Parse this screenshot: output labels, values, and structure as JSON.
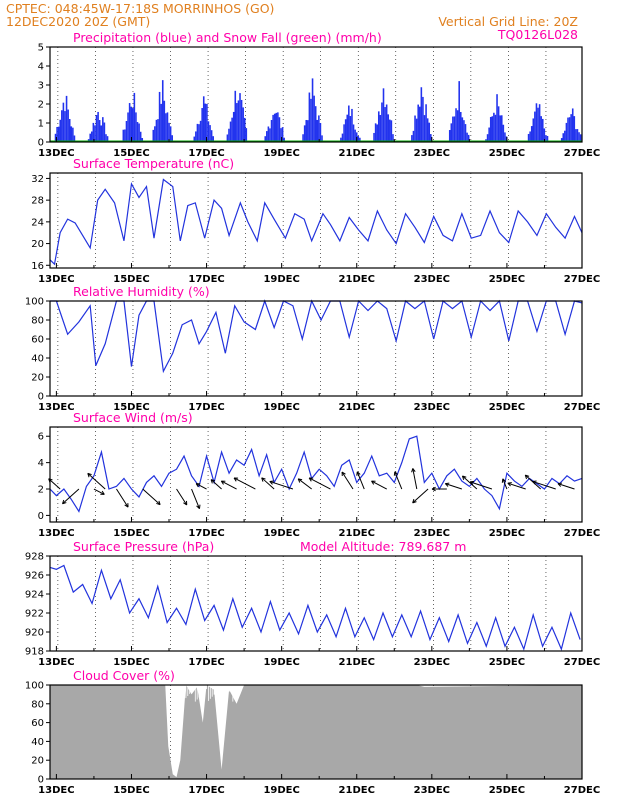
{
  "header": {
    "line1": "CPTEC:   048:45W-17:18S   MORRINHOS (GO)",
    "line2": "12DEC2020 20Z (GMT)",
    "grid_note": "Vertical Grid Line: 20Z",
    "run_code": "TQ0126L028"
  },
  "colors": {
    "header": "#e08020",
    "title": "#ff00aa",
    "line": "#2233dd",
    "precip": "#2233ee",
    "snow": "#00aa00",
    "cloud": "#a8a8a8",
    "wind_barb": "#000000"
  },
  "x_tick_labels": [
    "13DEC",
    "15DEC",
    "17DEC",
    "19DEC",
    "21DEC",
    "23DEC",
    "25DEC",
    "27DEC"
  ],
  "chart_data": [
    {
      "type": "bar",
      "title": "Precipitation (blue) and Snow Fall (green) (mm/h)",
      "ylim": [
        0,
        5
      ],
      "yticks": [
        "0",
        "1",
        "2",
        "3",
        "4",
        "5"
      ],
      "x_range_days": [
        12.83,
        27.0
      ],
      "series": [
        {
          "values_peaks": [
            [
              13.2,
              3.1
            ],
            [
              14.1,
              2.2
            ],
            [
              15.0,
              3.2
            ],
            [
              15.8,
              3.6
            ],
            [
              16.9,
              2.9
            ],
            [
              17.8,
              3.8
            ],
            [
              18.8,
              2.5
            ],
            [
              19.8,
              3.6
            ],
            [
              20.8,
              2.3
            ],
            [
              21.7,
              3.9
            ],
            [
              22.7,
              3.9
            ],
            [
              23.7,
              3.5
            ],
            [
              24.7,
              2.8
            ],
            [
              25.8,
              2.4
            ],
            [
              26.7,
              2.1
            ]
          ]
        }
      ]
    },
    {
      "type": "line",
      "title": "Surface Temperature (nC)",
      "ylim": [
        15.5,
        33
      ],
      "yticks": [
        "16",
        "20",
        "24",
        "28",
        "32"
      ],
      "x": [
        12.83,
        12.95,
        13.1,
        13.3,
        13.5,
        13.7,
        13.9,
        14.1,
        14.3,
        14.55,
        14.8,
        15.0,
        15.2,
        15.4,
        15.6,
        15.85,
        16.1,
        16.3,
        16.5,
        16.7,
        16.95,
        17.2,
        17.4,
        17.6,
        17.9,
        18.1,
        18.35,
        18.55,
        18.8,
        19.1,
        19.35,
        19.6,
        19.8,
        20.1,
        20.3,
        20.55,
        20.8,
        21.05,
        21.3,
        21.55,
        21.8,
        22.05,
        22.3,
        22.55,
        22.8,
        23.05,
        23.3,
        23.55,
        23.8,
        24.05,
        24.3,
        24.55,
        24.8,
        25.05,
        25.3,
        25.55,
        25.8,
        26.05,
        26.3,
        26.55,
        26.8,
        27.0
      ],
      "y": [
        17,
        16.2,
        22,
        24.5,
        23.8,
        21.5,
        19.2,
        28,
        30,
        27.5,
        20.5,
        31,
        28.5,
        30.5,
        21,
        31.8,
        30.5,
        20.5,
        27,
        27.5,
        21,
        28,
        26.5,
        21.5,
        27.5,
        24,
        20.5,
        27.5,
        24.5,
        21,
        25.5,
        24.5,
        20.5,
        25.5,
        23.5,
        20.5,
        24.8,
        22.5,
        20.5,
        26,
        22.5,
        20,
        25.5,
        23,
        20.2,
        25,
        21.5,
        20.5,
        25.5,
        21,
        21.5,
        26,
        22,
        20.2,
        26,
        24,
        21.5,
        25.5,
        23,
        21,
        25,
        22
      ]
    },
    {
      "type": "line",
      "title": "Relative Humidity (%)",
      "ylim": [
        0,
        100
      ],
      "yticks": [
        "0",
        "20",
        "40",
        "60",
        "80",
        "100"
      ],
      "x": [
        12.83,
        13.0,
        13.3,
        13.6,
        13.9,
        14.05,
        14.3,
        14.6,
        14.8,
        15.0,
        15.2,
        15.4,
        15.6,
        15.85,
        16.1,
        16.35,
        16.6,
        16.8,
        17.0,
        17.25,
        17.5,
        17.75,
        18.0,
        18.3,
        18.55,
        18.8,
        19.05,
        19.3,
        19.55,
        19.8,
        20.05,
        20.3,
        20.55,
        20.8,
        21.05,
        21.3,
        21.55,
        21.8,
        22.05,
        22.3,
        22.55,
        22.8,
        23.05,
        23.3,
        23.55,
        23.8,
        24.05,
        24.3,
        24.55,
        24.8,
        25.05,
        25.3,
        25.55,
        25.8,
        26.05,
        26.3,
        26.55,
        26.8,
        27.0
      ],
      "y": [
        100,
        100,
        65,
        78,
        95,
        32,
        55,
        100,
        100,
        31,
        85,
        100,
        100,
        26,
        45,
        75,
        80,
        55,
        68,
        88,
        45,
        95,
        78,
        70,
        100,
        72,
        100,
        95,
        60,
        100,
        80,
        100,
        100,
        62,
        100,
        90,
        100,
        92,
        58,
        100,
        92,
        100,
        60,
        100,
        92,
        100,
        62,
        100,
        90,
        100,
        58,
        100,
        100,
        68,
        100,
        100,
        65,
        100,
        98
      ]
    },
    {
      "type": "line",
      "title": "Surface Wind (m/s)",
      "ylim": [
        -0.5,
        6.7
      ],
      "yticks": [
        "0",
        "2",
        "4",
        "6"
      ],
      "x": [
        12.83,
        13.0,
        13.2,
        13.4,
        13.6,
        13.8,
        14.0,
        14.2,
        14.4,
        14.6,
        14.8,
        15.0,
        15.2,
        15.4,
        15.6,
        15.8,
        16.0,
        16.2,
        16.4,
        16.6,
        16.8,
        17.0,
        17.2,
        17.4,
        17.6,
        17.8,
        18.0,
        18.2,
        18.4,
        18.6,
        18.8,
        19.0,
        19.2,
        19.4,
        19.6,
        19.8,
        20.0,
        20.2,
        20.4,
        20.6,
        20.8,
        21.0,
        21.2,
        21.4,
        21.6,
        21.8,
        22.0,
        22.2,
        22.4,
        22.6,
        22.8,
        23.0,
        23.2,
        23.4,
        23.6,
        23.8,
        24.0,
        24.2,
        24.4,
        24.6,
        24.8,
        25.0,
        25.2,
        25.4,
        25.6,
        25.8,
        26.0,
        26.2,
        26.4,
        26.6,
        26.8,
        27.0
      ],
      "y": [
        2.0,
        1.5,
        2.0,
        1.2,
        0.3,
        2.2,
        3.0,
        4.8,
        2.0,
        2.2,
        2.8,
        2.0,
        1.4,
        2.5,
        3.0,
        2.2,
        3.2,
        3.5,
        4.5,
        3.0,
        2.2,
        4.5,
        2.5,
        4.8,
        3.2,
        4.2,
        3.8,
        5.0,
        3.0,
        4.6,
        2.5,
        3.5,
        2.0,
        3.2,
        4.8,
        2.8,
        3.5,
        3.0,
        2.2,
        3.8,
        4.2,
        2.5,
        3.2,
        4.5,
        3.0,
        3.2,
        2.5,
        4.0,
        5.8,
        6.0,
        2.5,
        3.2,
        2.0,
        3.0,
        3.5,
        2.6,
        2.2,
        2.8,
        2.0,
        1.5,
        0.5,
        3.2,
        2.6,
        2.2,
        2.8,
        2.4,
        2.0,
        2.8,
        2.4,
        3.0,
        2.6,
        2.8
      ],
      "arrows_dir_deg": [
        [
          13.1,
          225
        ],
        [
          13.6,
          135
        ],
        [
          14.0,
          30
        ],
        [
          14.3,
          225
        ],
        [
          14.6,
          60
        ],
        [
          15.3,
          45
        ],
        [
          16.2,
          60
        ],
        [
          16.6,
          70
        ],
        [
          17.0,
          210
        ],
        [
          17.4,
          225
        ],
        [
          17.8,
          210
        ],
        [
          18.3,
          210
        ],
        [
          18.8,
          225
        ],
        [
          19.3,
          200
        ],
        [
          19.8,
          220
        ],
        [
          20.3,
          210
        ],
        [
          20.9,
          240
        ],
        [
          21.2,
          250
        ],
        [
          21.8,
          210
        ],
        [
          22.2,
          250
        ],
        [
          22.6,
          260
        ],
        [
          22.9,
          135
        ],
        [
          23.4,
          180
        ],
        [
          23.8,
          200
        ],
        [
          24.2,
          225
        ],
        [
          24.6,
          200
        ],
        [
          25.0,
          250
        ],
        [
          25.5,
          200
        ],
        [
          25.9,
          225
        ],
        [
          26.3,
          200
        ],
        [
          26.8,
          200
        ]
      ]
    },
    {
      "type": "line",
      "title": "Surface Pressure (hPa)",
      "annotation": "Model Altitude:  789.687 m",
      "ylim": [
        918,
        928
      ],
      "yticks": [
        "918",
        "920",
        "922",
        "924",
        "926",
        "928"
      ],
      "x": [
        12.83,
        13.0,
        13.2,
        13.45,
        13.7,
        13.95,
        14.2,
        14.45,
        14.7,
        14.95,
        15.2,
        15.45,
        15.7,
        15.95,
        16.2,
        16.45,
        16.7,
        16.95,
        17.2,
        17.45,
        17.7,
        17.95,
        18.2,
        18.45,
        18.7,
        18.95,
        19.2,
        19.45,
        19.7,
        19.95,
        20.2,
        20.45,
        20.7,
        20.95,
        21.2,
        21.45,
        21.7,
        21.95,
        22.2,
        22.45,
        22.7,
        22.95,
        23.2,
        23.45,
        23.7,
        23.95,
        24.2,
        24.45,
        24.7,
        24.95,
        25.2,
        25.45,
        25.7,
        25.95,
        26.2,
        26.45,
        26.7,
        26.95
      ],
      "y": [
        926.8,
        926.6,
        927.0,
        924.2,
        925.0,
        923.0,
        926.5,
        923.5,
        925.5,
        922.0,
        923.5,
        921.5,
        924.8,
        921.0,
        922.5,
        920.8,
        924.5,
        921.2,
        922.8,
        920.2,
        923.5,
        920.5,
        922.5,
        920.0,
        923.2,
        920.2,
        922.0,
        919.8,
        922.8,
        920.0,
        921.8,
        919.5,
        922.5,
        919.5,
        921.5,
        919.2,
        922.0,
        919.5,
        921.8,
        919.5,
        922.2,
        919.2,
        921.5,
        919.0,
        921.8,
        918.8,
        921.0,
        918.5,
        921.5,
        918.5,
        920.5,
        918.2,
        921.8,
        918.5,
        920.5,
        918.2,
        922.0,
        919.2
      ]
    },
    {
      "type": "area",
      "title": "Cloud Cover (%)",
      "ylim": [
        0,
        100
      ],
      "yticks": [
        "0",
        "20",
        "40",
        "60",
        "80",
        "100"
      ],
      "x": [
        12.83,
        15.9,
        15.98,
        16.1,
        16.2,
        16.3,
        16.45,
        16.6,
        16.75,
        16.9,
        17.0,
        17.2,
        17.4,
        17.6,
        17.8,
        18.0,
        22.6,
        22.8,
        27.0
      ],
      "y": [
        100,
        100,
        35,
        5,
        2,
        20,
        100,
        90,
        98,
        60,
        100,
        95,
        10,
        95,
        80,
        100,
        100,
        98,
        100
      ]
    }
  ]
}
